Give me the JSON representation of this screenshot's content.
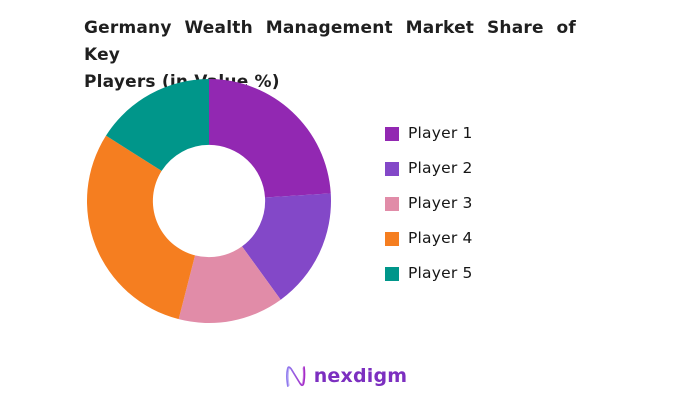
{
  "title": {
    "line1": "Germany Wealth Management Market Share of Key",
    "line2": "Players (in Value %)"
  },
  "footer": {
    "brand": "nexdigm"
  },
  "chart_data": {
    "type": "pie",
    "subtype": "donut",
    "title": "Germany Wealth Management Market Share of Key Players (in Value %)",
    "unit": "%",
    "start_angle_deg": 0,
    "direction": "clockwise",
    "inner_radius_ratio": 0.46,
    "legend_position": "right",
    "values_shown_on_chart": false,
    "series": [
      {
        "name": "Player 1",
        "value": 24,
        "color": "#9228b2"
      },
      {
        "name": "Player 2",
        "value": 16,
        "color": "#8348c8"
      },
      {
        "name": "Player 3",
        "value": 14,
        "color": "#e18ca8"
      },
      {
        "name": "Player 4",
        "value": 30,
        "color": "#f57e20"
      },
      {
        "name": "Player 5",
        "value": 16,
        "color": "#00968a"
      }
    ],
    "brand_colors": {
      "logo_text": "#7c2fc0",
      "logo_gradient_start": "#8f7cef",
      "logo_gradient_end": "#a62bc8"
    }
  }
}
